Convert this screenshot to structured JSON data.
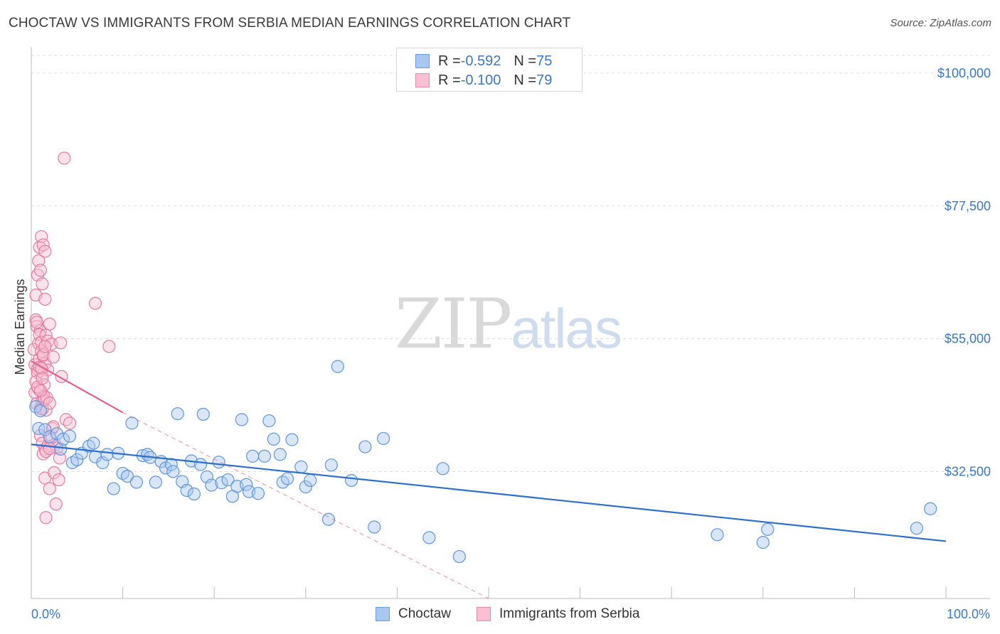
{
  "title": "CHOCTAW VS IMMIGRANTS FROM SERBIA MEDIAN EARNINGS CORRELATION CHART",
  "source": "Source: ZipAtlas.com",
  "watermark": {
    "zip": "ZIP",
    "atlas": "atlas"
  },
  "legend": {
    "rows": [
      {
        "r_label": "R = ",
        "r_value": "-0.592",
        "n_label": "N = ",
        "n_value": "75",
        "color": "#a8c8f0",
        "border": "#6a9ee0"
      },
      {
        "r_label": "R = ",
        "r_value": "-0.100",
        "n_label": "N = ",
        "n_value": "79",
        "color": "#f8c0d2",
        "border": "#e889a8"
      }
    ]
  },
  "bottom_legend": [
    {
      "label": "Choctaw",
      "color": "#a8c8f0",
      "border": "#6a9ee0"
    },
    {
      "label": "Immigrants from Serbia",
      "color": "#f8c0d2",
      "border": "#e889a8"
    }
  ],
  "chart_data": {
    "type": "scatter",
    "title": "CHOCTAW VS IMMIGRANTS FROM SERBIA MEDIAN EARNINGS CORRELATION CHART",
    "xlabel": "",
    "ylabel": "Median Earnings",
    "xlim": [
      0,
      100
    ],
    "ylim": [
      11000,
      103000
    ],
    "x_tick_labels": [
      "0.0%",
      "100.0%"
    ],
    "y_ticks": [
      32500,
      55000,
      77500,
      100000
    ],
    "y_tick_labels": [
      "$32,500",
      "$55,000",
      "$77,500",
      "$100,000"
    ],
    "grid": true,
    "colors": {
      "choctaw_fill": "#a8c8f0",
      "choctaw_stroke": "#5f95dc",
      "choctaw_line": "#2f6fcc",
      "serbia_fill": "#f8c0d2",
      "serbia_stroke": "#e57a9f",
      "serbia_line": "#e0608d"
    },
    "series": [
      {
        "name": "Choctaw",
        "points": [
          [
            0.8,
            39800
          ],
          [
            1.5,
            39600
          ],
          [
            2.0,
            38400
          ],
          [
            2.8,
            38900
          ],
          [
            3.2,
            36300
          ],
          [
            3.5,
            38000
          ],
          [
            4.2,
            38500
          ],
          [
            4.5,
            34000
          ],
          [
            5.0,
            34500
          ],
          [
            5.5,
            35600
          ],
          [
            6.3,
            36800
          ],
          [
            6.8,
            37300
          ],
          [
            7.0,
            35000
          ],
          [
            7.8,
            34000
          ],
          [
            8.3,
            35400
          ],
          [
            9.0,
            29600
          ],
          [
            9.5,
            35600
          ],
          [
            10.0,
            32200
          ],
          [
            10.5,
            31700
          ],
          [
            11.0,
            40700
          ],
          [
            11.5,
            30700
          ],
          [
            12.2,
            35200
          ],
          [
            12.7,
            35400
          ],
          [
            13.0,
            34900
          ],
          [
            13.6,
            30700
          ],
          [
            14.2,
            34200
          ],
          [
            14.7,
            33100
          ],
          [
            15.3,
            33700
          ],
          [
            15.5,
            32500
          ],
          [
            16.0,
            42300
          ],
          [
            16.5,
            30800
          ],
          [
            17.0,
            29300
          ],
          [
            17.5,
            34300
          ],
          [
            17.8,
            28700
          ],
          [
            18.5,
            33700
          ],
          [
            18.8,
            42200
          ],
          [
            19.2,
            31600
          ],
          [
            19.7,
            30200
          ],
          [
            20.5,
            34100
          ],
          [
            20.8,
            30600
          ],
          [
            21.5,
            31100
          ],
          [
            22.0,
            28300
          ],
          [
            22.5,
            30000
          ],
          [
            23.0,
            41300
          ],
          [
            23.5,
            30300
          ],
          [
            23.8,
            29100
          ],
          [
            24.2,
            35100
          ],
          [
            24.8,
            28800
          ],
          [
            25.5,
            35100
          ],
          [
            26.0,
            41100
          ],
          [
            26.5,
            38000
          ],
          [
            27.2,
            35400
          ],
          [
            27.5,
            30700
          ],
          [
            28.0,
            31300
          ],
          [
            28.5,
            37900
          ],
          [
            29.5,
            33300
          ],
          [
            30.0,
            29900
          ],
          [
            30.5,
            31000
          ],
          [
            32.5,
            24400
          ],
          [
            32.8,
            33600
          ],
          [
            33.5,
            50300
          ],
          [
            35.0,
            31000
          ],
          [
            36.5,
            36700
          ],
          [
            37.5,
            23100
          ],
          [
            38.5,
            38100
          ],
          [
            43.5,
            21300
          ],
          [
            45.0,
            33000
          ],
          [
            46.8,
            18100
          ],
          [
            75.0,
            21800
          ],
          [
            80.0,
            20500
          ],
          [
            80.5,
            22700
          ],
          [
            96.8,
            22900
          ],
          [
            98.3,
            26200
          ],
          [
            0.5,
            43500
          ],
          [
            1.0,
            42800
          ]
        ]
      },
      {
        "name": "Immigrants from Serbia",
        "points": [
          [
            0.3,
            53200
          ],
          [
            0.4,
            50600
          ],
          [
            0.5,
            58200
          ],
          [
            0.6,
            57100
          ],
          [
            0.7,
            49900
          ],
          [
            0.8,
            54200
          ],
          [
            0.9,
            51600
          ],
          [
            1.0,
            56400
          ],
          [
            1.1,
            52900
          ],
          [
            1.2,
            48800
          ],
          [
            1.3,
            45400
          ],
          [
            1.4,
            47200
          ],
          [
            0.4,
            45900
          ],
          [
            0.6,
            44000
          ],
          [
            0.8,
            46500
          ],
          [
            1.0,
            43200
          ],
          [
            1.2,
            44400
          ],
          [
            1.4,
            45100
          ],
          [
            1.6,
            42900
          ],
          [
            0.5,
            62400
          ],
          [
            0.7,
            65800
          ],
          [
            0.9,
            70500
          ],
          [
            1.1,
            72300
          ],
          [
            1.3,
            70900
          ],
          [
            1.5,
            69800
          ],
          [
            0.8,
            68200
          ],
          [
            1.0,
            66600
          ],
          [
            1.2,
            64300
          ],
          [
            1.5,
            61700
          ],
          [
            0.6,
            57800
          ],
          [
            0.9,
            55700
          ],
          [
            1.1,
            54400
          ],
          [
            1.3,
            52100
          ],
          [
            1.5,
            50800
          ],
          [
            1.8,
            49700
          ],
          [
            2.0,
            57500
          ],
          [
            0.7,
            49300
          ],
          [
            0.9,
            50200
          ],
          [
            1.1,
            50000
          ],
          [
            1.3,
            52300
          ],
          [
            1.6,
            55600
          ],
          [
            1.8,
            54600
          ],
          [
            2.2,
            54100
          ],
          [
            2.4,
            51900
          ],
          [
            3.2,
            54300
          ],
          [
            3.3,
            48600
          ],
          [
            3.6,
            85600
          ],
          [
            3.8,
            41300
          ],
          [
            4.2,
            40700
          ],
          [
            7.0,
            61000
          ],
          [
            8.5,
            53700
          ],
          [
            1.0,
            38600
          ],
          [
            1.2,
            37300
          ],
          [
            1.5,
            36300
          ],
          [
            1.8,
            36800
          ],
          [
            2.1,
            38100
          ],
          [
            2.3,
            39800
          ],
          [
            2.6,
            37100
          ],
          [
            2.8,
            36500
          ],
          [
            1.3,
            35500
          ],
          [
            1.6,
            35900
          ],
          [
            2.0,
            36400
          ],
          [
            2.4,
            40100
          ],
          [
            3.1,
            34800
          ],
          [
            1.5,
            31400
          ],
          [
            2.0,
            29600
          ],
          [
            2.5,
            32300
          ],
          [
            3.0,
            31100
          ],
          [
            1.6,
            24700
          ],
          [
            2.7,
            27000
          ],
          [
            1.2,
            43100
          ],
          [
            1.4,
            44600
          ],
          [
            1.7,
            45000
          ],
          [
            2.0,
            44100
          ],
          [
            0.5,
            47700
          ],
          [
            0.7,
            46800
          ],
          [
            1.0,
            46200
          ],
          [
            1.2,
            48300
          ],
          [
            1.5,
            53700
          ]
        ]
      }
    ],
    "trend_lines": [
      {
        "series": "Choctaw",
        "x": [
          0,
          100
        ],
        "y": [
          37100,
          20700
        ],
        "style": "solid"
      },
      {
        "series": "Immigrants from Serbia",
        "x": [
          0,
          10
        ],
        "y": [
          51200,
          42500
        ],
        "style": "solid"
      },
      {
        "series": "Immigrants from Serbia",
        "x": [
          10,
          50
        ],
        "y": [
          42500,
          11000
        ],
        "style": "dashed"
      }
    ]
  }
}
